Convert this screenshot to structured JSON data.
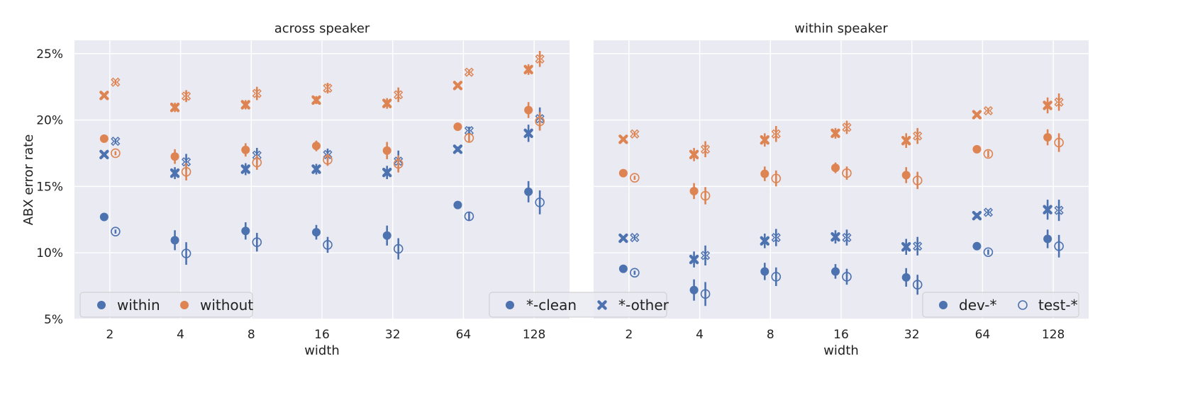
{
  "chart_data": {
    "type": "scatter",
    "ylabel": "ABX error rate",
    "xlabel": "width",
    "x_categories": [
      "2",
      "4",
      "8",
      "16",
      "32",
      "64",
      "128"
    ],
    "yticks": [
      "5%",
      "10%",
      "15%",
      "20%",
      "25%"
    ],
    "ylim": [
      5,
      26
    ],
    "grid": true,
    "colors": {
      "within": "#4c72b0",
      "without": "#dd8452"
    },
    "legends": {
      "color": [
        {
          "key": "within",
          "label": "within"
        },
        {
          "key": "without",
          "label": "without"
        }
      ],
      "marker": [
        {
          "key": "clean",
          "label": "*-clean"
        },
        {
          "key": "other",
          "label": "*-other"
        }
      ],
      "fill": [
        {
          "key": "dev",
          "label": "dev-*"
        },
        {
          "key": "test",
          "label": "test-*"
        }
      ]
    },
    "panels": [
      {
        "title": "across speaker",
        "series": [
          {
            "group": "within",
            "marker": "clean",
            "split": "dev",
            "values": [
              12.7,
              10.95,
              11.65,
              11.55,
              11.3,
              13.6,
              14.6
            ],
            "err": [
              0.15,
              0.75,
              0.65,
              0.55,
              0.75,
              0.3,
              0.8
            ]
          },
          {
            "group": "within",
            "marker": "clean",
            "split": "test",
            "values": [
              11.6,
              9.95,
              10.8,
              10.6,
              10.3,
              12.75,
              13.8
            ],
            "err": [
              0.15,
              0.85,
              0.7,
              0.6,
              0.8,
              0.3,
              0.9
            ]
          },
          {
            "group": "within",
            "marker": "other",
            "split": "dev",
            "values": [
              17.4,
              16.0,
              16.3,
              16.3,
              16.05,
              17.8,
              19.0
            ],
            "err": [
              0.15,
              0.45,
              0.45,
              0.4,
              0.5,
              0.2,
              0.65
            ]
          },
          {
            "group": "within",
            "marker": "other",
            "split": "test",
            "values": [
              18.4,
              16.85,
              17.35,
              17.4,
              16.9,
              19.2,
              20.1
            ],
            "err": [
              0.15,
              0.6,
              0.55,
              0.45,
              0.8,
              0.3,
              0.85
            ]
          },
          {
            "group": "without",
            "marker": "clean",
            "split": "dev",
            "values": [
              18.6,
              17.25,
              17.75,
              18.05,
              17.7,
              19.5,
              20.75
            ],
            "err": [
              0.15,
              0.55,
              0.5,
              0.4,
              0.65,
              0.2,
              0.6
            ]
          },
          {
            "group": "without",
            "marker": "clean",
            "split": "test",
            "values": [
              17.5,
              16.1,
              16.8,
              17.0,
              16.7,
              18.65,
              19.9
            ],
            "err": [
              0.15,
              0.65,
              0.55,
              0.45,
              0.65,
              0.3,
              0.7
            ]
          },
          {
            "group": "without",
            "marker": "other",
            "split": "dev",
            "values": [
              21.85,
              20.95,
              21.15,
              21.5,
              21.25,
              22.6,
              23.8
            ],
            "err": [
              0.15,
              0.35,
              0.35,
              0.3,
              0.4,
              0.15,
              0.4
            ]
          },
          {
            "group": "without",
            "marker": "other",
            "split": "test",
            "values": [
              22.85,
              21.8,
              22.0,
              22.4,
              21.9,
              23.6,
              24.6
            ],
            "err": [
              0.15,
              0.45,
              0.5,
              0.4,
              0.55,
              0.2,
              0.6
            ]
          }
        ]
      },
      {
        "title": "within speaker",
        "series": [
          {
            "group": "within",
            "marker": "clean",
            "split": "dev",
            "values": [
              8.8,
              7.2,
              8.6,
              8.6,
              8.15,
              10.5,
              11.05
            ],
            "err": [
              0.15,
              0.8,
              0.65,
              0.55,
              0.7,
              0.2,
              0.7
            ]
          },
          {
            "group": "within",
            "marker": "clean",
            "split": "test",
            "values": [
              8.5,
              6.9,
              8.2,
              8.2,
              7.6,
              10.05,
              10.5
            ],
            "err": [
              0.15,
              0.9,
              0.7,
              0.6,
              0.75,
              0.2,
              0.85
            ]
          },
          {
            "group": "within",
            "marker": "other",
            "split": "dev",
            "values": [
              11.1,
              9.5,
              10.9,
              11.2,
              10.45,
              12.8,
              13.25
            ],
            "err": [
              0.15,
              0.6,
              0.55,
              0.5,
              0.6,
              0.2,
              0.75
            ]
          },
          {
            "group": "within",
            "marker": "other",
            "split": "test",
            "values": [
              11.15,
              9.8,
              11.15,
              11.15,
              10.5,
              13.05,
              13.2
            ],
            "err": [
              0.15,
              0.75,
              0.65,
              0.6,
              0.7,
              0.2,
              0.8
            ]
          },
          {
            "group": "without",
            "marker": "clean",
            "split": "dev",
            "values": [
              16.0,
              14.65,
              15.95,
              16.4,
              15.85,
              17.8,
              18.7
            ],
            "err": [
              0.15,
              0.6,
              0.55,
              0.4,
              0.6,
              0.2,
              0.6
            ]
          },
          {
            "group": "without",
            "marker": "clean",
            "split": "test",
            "values": [
              15.65,
              14.3,
              15.6,
              16.0,
              15.45,
              17.45,
              18.3
            ],
            "err": [
              0.15,
              0.65,
              0.6,
              0.5,
              0.65,
              0.25,
              0.7
            ]
          },
          {
            "group": "without",
            "marker": "other",
            "split": "dev",
            "values": [
              18.55,
              17.4,
              18.5,
              19.0,
              18.45,
              20.4,
              21.1
            ],
            "err": [
              0.15,
              0.5,
              0.5,
              0.4,
              0.55,
              0.15,
              0.6
            ]
          },
          {
            "group": "without",
            "marker": "other",
            "split": "test",
            "values": [
              18.95,
              17.8,
              18.95,
              19.45,
              18.8,
              20.7,
              21.35
            ],
            "err": [
              0.15,
              0.6,
              0.6,
              0.5,
              0.6,
              0.2,
              0.65
            ]
          }
        ]
      }
    ]
  }
}
